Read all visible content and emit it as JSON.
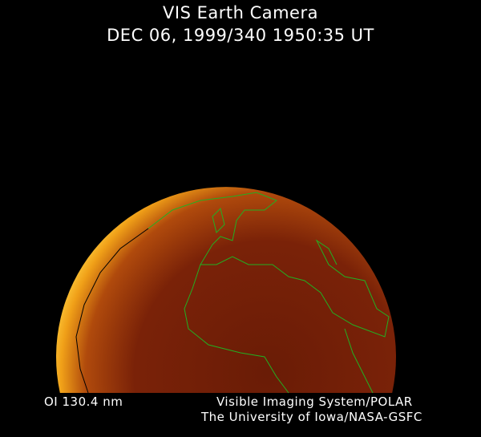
{
  "header": {
    "title": "VIS Earth Camera",
    "subtitle": "DEC 06, 1999/340 1950:35 UT"
  },
  "footer": {
    "filter": "OI  130.4 nm",
    "instrument": "Visible Imaging System/POLAR",
    "organization": "The University of Iowa/NASA-GSFC"
  },
  "colors": {
    "coastline": "#22b022",
    "limb": "#ffc020",
    "disk": "#6a1a04"
  }
}
